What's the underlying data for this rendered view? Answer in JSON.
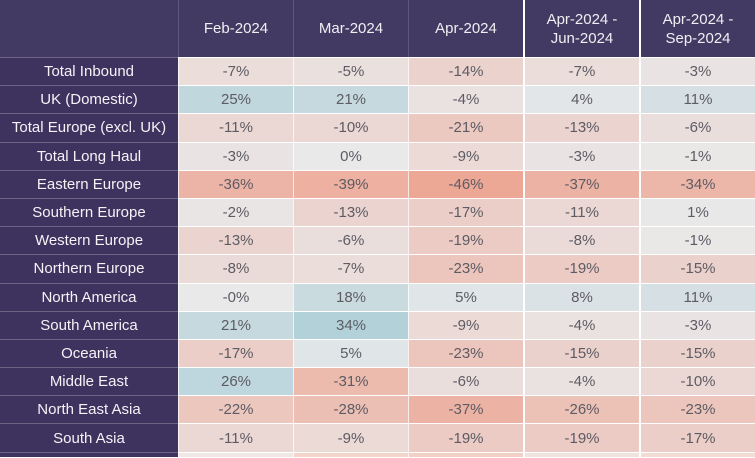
{
  "chart_data": {
    "type": "heatmap",
    "title": "",
    "columns": [
      "Feb-2024",
      "Mar-2024",
      "Apr-2024",
      "Apr-2024 - Jun-2024",
      "Apr-2024 - Sep-2024"
    ],
    "rows": [
      "Total Inbound",
      "UK (Domestic)",
      "Total Europe (excl. UK)",
      "Total Long Haul",
      "Eastern Europe",
      "Southern Europe",
      "Western Europe",
      "Northern Europe",
      "North America",
      "South America",
      "Oceania",
      "Middle East",
      "North East Asia",
      "South Asia"
    ],
    "values": [
      [
        -7,
        -5,
        -14,
        -7,
        -3
      ],
      [
        25,
        21,
        -4,
        4,
        11
      ],
      [
        -11,
        -10,
        -21,
        -13,
        -6
      ],
      [
        -3,
        0,
        -9,
        -3,
        -1
      ],
      [
        -36,
        -39,
        -46,
        -37,
        -34
      ],
      [
        -2,
        -13,
        -17,
        -11,
        1
      ],
      [
        -13,
        -6,
        -19,
        -8,
        -1
      ],
      [
        -8,
        -7,
        -23,
        -19,
        -15
      ],
      [
        0,
        18,
        5,
        8,
        11
      ],
      [
        21,
        34,
        -9,
        -4,
        -3
      ],
      [
        -17,
        5,
        -23,
        -15,
        -15
      ],
      [
        26,
        -31,
        -6,
        -4,
        -10
      ],
      [
        -22,
        -28,
        -37,
        -26,
        -23
      ],
      [
        -11,
        -9,
        -19,
        -19,
        -17
      ]
    ],
    "display": [
      [
        "-7%",
        "-5%",
        "-14%",
        "-7%",
        "-3%"
      ],
      [
        "25%",
        "21%",
        "-4%",
        "4%",
        "11%"
      ],
      [
        "-11%",
        "-10%",
        "-21%",
        "-13%",
        "-6%"
      ],
      [
        "-3%",
        "0%",
        "-9%",
        "-3%",
        "-1%"
      ],
      [
        "-36%",
        "-39%",
        "-46%",
        "-37%",
        "-34%"
      ],
      [
        "-2%",
        "-13%",
        "-17%",
        "-11%",
        "1%"
      ],
      [
        "-13%",
        "-6%",
        "-19%",
        "-8%",
        "-1%"
      ],
      [
        "-8%",
        "-7%",
        "-23%",
        "-19%",
        "-15%"
      ],
      [
        "-0%",
        "18%",
        "5%",
        "8%",
        "11%"
      ],
      [
        "21%",
        "34%",
        "-9%",
        "-4%",
        "-3%"
      ],
      [
        "-17%",
        "5%",
        "-23%",
        "-15%",
        "-15%"
      ],
      [
        "26%",
        "-31%",
        "-6%",
        "-4%",
        "-10%"
      ],
      [
        "-22%",
        "-28%",
        "-37%",
        "-26%",
        "-23%"
      ],
      [
        "-11%",
        "-9%",
        "-19%",
        "-19%",
        "-17%"
      ]
    ],
    "unit": "%",
    "legend_position": "none",
    "color_scale": {
      "negative": "#eda795",
      "neutral": "#eae9ea",
      "positive": "#b2d1d9",
      "domain": [
        -46,
        0,
        34
      ]
    }
  },
  "style": {
    "header_bg": "#423a62",
    "label_bg": "#3e335f",
    "header_text_color": "#f2eef3",
    "label_text_color": "#f6f2f6",
    "value_text_color": "#5d5b64",
    "header_divider": "#5e567c",
    "label_divider": "#6b6486",
    "grid_line": "#ffffff"
  },
  "partial_bottom_row": {
    "cell_tints": [
      "#f0e8e5",
      "#f4d5ca",
      "#f2d0c6",
      "#efe3df",
      "#f2dcd4"
    ]
  }
}
